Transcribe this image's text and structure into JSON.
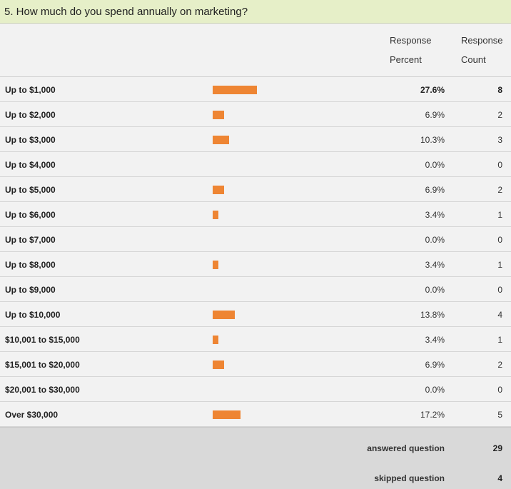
{
  "question": {
    "title": "5. How much do you spend annually on marketing?"
  },
  "header": {
    "percent_label_1": "Response",
    "percent_label_2": "Percent",
    "count_label_1": "Response",
    "count_label_2": "Count"
  },
  "colors": {
    "bar": "#ee8533",
    "question_bg": "#e6efc8",
    "footer_bg": "#d9d9d9"
  },
  "chart_data": {
    "type": "bar",
    "orientation": "horizontal",
    "title": "5. How much do you spend annually on marketing?",
    "categories": [
      "Up to $1,000",
      "Up to $2,000",
      "Up to $3,000",
      "Up to $4,000",
      "Up to $5,000",
      "Up to $6,000",
      "Up to $7,000",
      "Up to $8,000",
      "Up to $9,000",
      "Up to $10,000",
      "$10,001 to $15,000",
      "$15,001 to $20,000",
      "$20,001 to $30,000",
      "Over $30,000"
    ],
    "percent_values": [
      27.6,
      6.9,
      10.3,
      0.0,
      6.9,
      3.4,
      0.0,
      3.4,
      0.0,
      13.8,
      3.4,
      6.9,
      0.0,
      17.2
    ],
    "percent_labels": [
      "27.6%",
      "6.9%",
      "10.3%",
      "0.0%",
      "6.9%",
      "3.4%",
      "0.0%",
      "3.4%",
      "0.0%",
      "13.8%",
      "3.4%",
      "6.9%",
      "0.0%",
      "17.2%"
    ],
    "counts": [
      "8",
      "2",
      "3",
      "0",
      "2",
      "1",
      "0",
      "1",
      "0",
      "4",
      "1",
      "2",
      "0",
      "5"
    ],
    "xlim": [
      0,
      100
    ]
  },
  "footer": {
    "answered_label": "answered question",
    "answered_value": "29",
    "skipped_label": "skipped question",
    "skipped_value": "4"
  }
}
